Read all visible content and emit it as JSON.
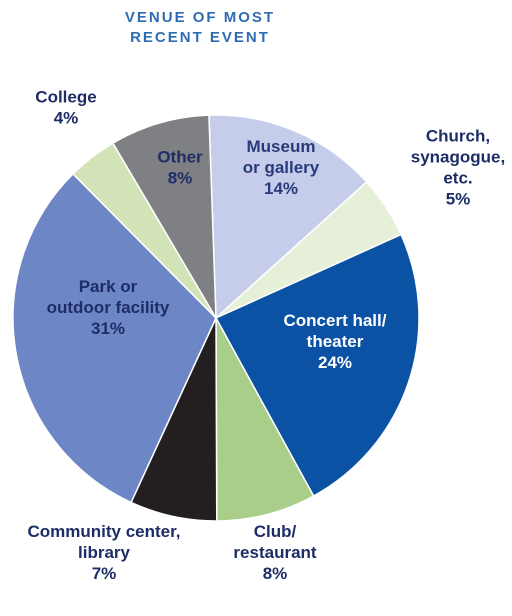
{
  "chart_data": {
    "type": "pie",
    "title": [
      "VENUE OF MOST",
      "RECENT EVENT"
    ],
    "unit": "%",
    "slices": [
      {
        "label": [
          "Museum",
          "or gallery"
        ],
        "value": 14,
        "value_label": "14%",
        "color": "#c5cdea",
        "label_color": "#2b3a7a"
      },
      {
        "label": [
          "Church,",
          "synagogue,",
          "etc."
        ],
        "value": 5,
        "value_label": "5%",
        "color": "#e6efd8",
        "label_color": "#1f2d66"
      },
      {
        "label": [
          "Concert hall/",
          "theater"
        ],
        "value": 24,
        "value_label": "24%",
        "color": "#0b52a4",
        "label_color": "#ffffff"
      },
      {
        "label": [
          "Club/",
          "restaurant"
        ],
        "value": 8,
        "value_label": "8%",
        "color": "#a9ce8a",
        "label_color": "#1f2d66"
      },
      {
        "label": [
          "Community center,",
          "library"
        ],
        "value": 7,
        "value_label": "7%",
        "color": "#231f20",
        "label_color": "#1f2d66"
      },
      {
        "label": [
          "Park or",
          "outdoor facility"
        ],
        "value": 31,
        "value_label": "31%",
        "color": "#6d86c5",
        "label_color": "#1f2d66"
      },
      {
        "label": [
          "College"
        ],
        "value": 4,
        "value_label": "4%",
        "color": "#d3e3b8",
        "label_color": "#1f2d66"
      },
      {
        "label": [
          "Other"
        ],
        "value": 8,
        "value_label": "8%",
        "color": "#7f8083",
        "label_color": "#1f2d66"
      }
    ]
  }
}
